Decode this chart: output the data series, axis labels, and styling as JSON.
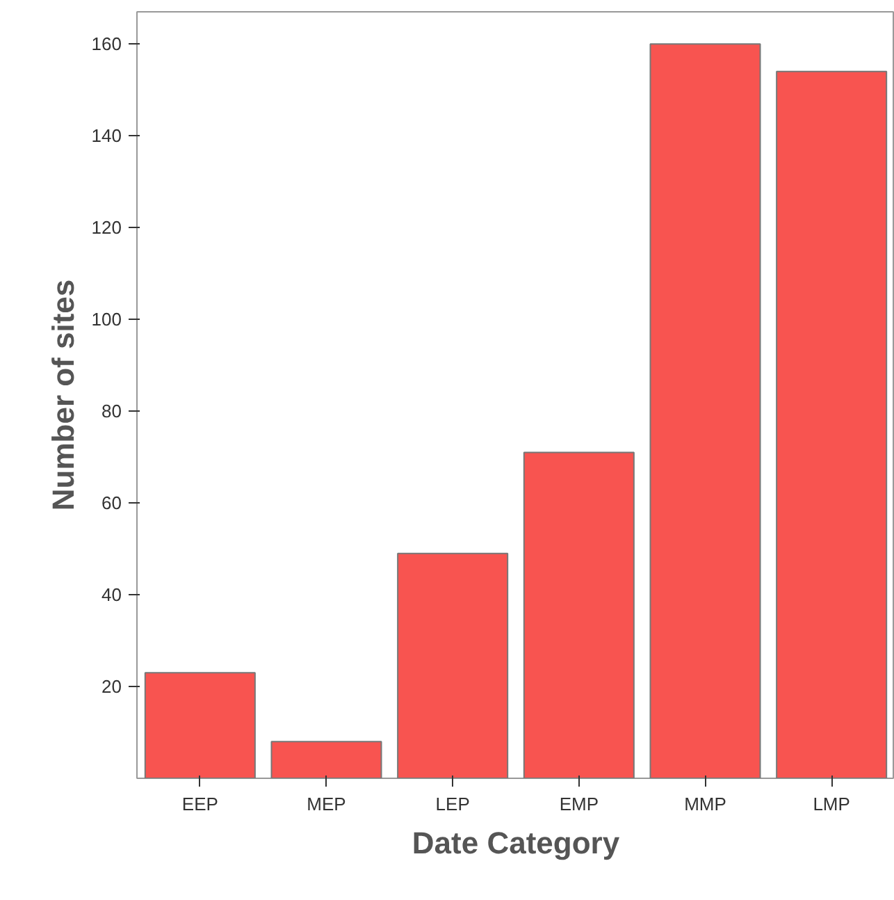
{
  "chart_data": {
    "type": "bar",
    "xlabel": "Date Category",
    "ylabel": "Number of sites",
    "categories": [
      "EEP",
      "MEP",
      "LEP",
      "EMP",
      "MMP",
      "LMP"
    ],
    "values": [
      23,
      8,
      49,
      71,
      160,
      154
    ],
    "color": "#f85450",
    "ylim": [
      0,
      167
    ],
    "yticks": [
      20,
      40,
      60,
      80,
      100,
      120,
      140,
      160
    ],
    "grid": false
  }
}
